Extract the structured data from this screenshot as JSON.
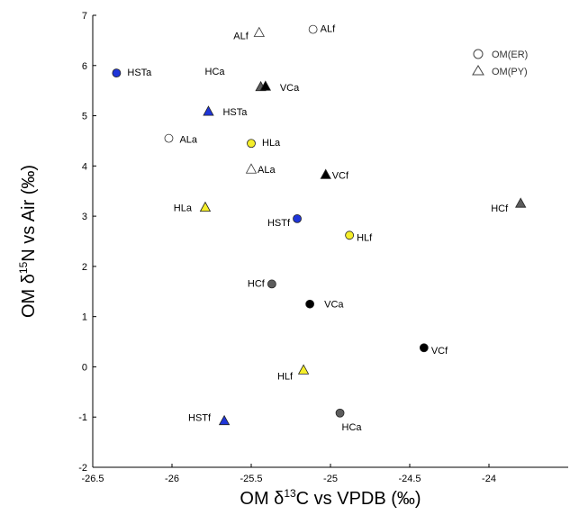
{
  "chart_data": {
    "type": "scatter",
    "xlabel": {
      "prefix": "OM δ",
      "sup": "13",
      "suffix": "C vs VPDB (‰)"
    },
    "ylabel": {
      "prefix": "OM δ",
      "sup": "15",
      "suffix": "N vs Air (‰)"
    },
    "xlim": [
      -26.5,
      -23.5
    ],
    "ylim": [
      -2,
      7
    ],
    "xticks": [
      -26.5,
      -26,
      -25.5,
      -25,
      -24.5,
      -24
    ],
    "yticks": [
      -2,
      -1,
      0,
      1,
      2,
      3,
      4,
      5,
      6,
      7
    ],
    "xtick_labels": [
      "-26.5",
      "-26",
      "-25.5",
      "-25",
      "-24.5",
      "-24"
    ],
    "ytick_labels": [
      "-2",
      "-1",
      "0",
      "1",
      "2",
      "3",
      "4",
      "5",
      "6",
      "7"
    ],
    "legend": {
      "placement": "top-right",
      "entries": [
        {
          "name": "OM(ER)",
          "marker": "circle"
        },
        {
          "name": "OM(PY)",
          "marker": "triangle"
        }
      ]
    },
    "colors": {
      "blue": "#1f35d8",
      "yellow": "#f5ee2a",
      "gray": "#5c5c5c",
      "black": "#000000",
      "white": "#ffffff"
    },
    "series": [
      {
        "name": "OM(ER)",
        "marker": "circle",
        "points": [
          {
            "label": "HSTa",
            "x": -26.35,
            "y": 5.85,
            "color": "blue"
          },
          {
            "label": "ALa",
            "x": -26.02,
            "y": 4.55,
            "color": "white"
          },
          {
            "label": "HLa",
            "x": -25.5,
            "y": 4.45,
            "color": "yellow"
          },
          {
            "label": "ALf",
            "x": -25.11,
            "y": 6.72,
            "color": "white"
          },
          {
            "label": "HSTf",
            "x": -25.21,
            "y": 2.95,
            "color": "blue"
          },
          {
            "label": "HLf",
            "x": -24.88,
            "y": 2.62,
            "color": "yellow"
          },
          {
            "label": "HCf",
            "x": -25.37,
            "y": 1.65,
            "color": "gray"
          },
          {
            "label": "VCa",
            "x": -25.13,
            "y": 1.25,
            "color": "black"
          },
          {
            "label": "VCf",
            "x": -24.41,
            "y": 0.38,
            "color": "black"
          },
          {
            "label": "HCa",
            "x": -24.94,
            "y": -0.92,
            "color": "gray"
          }
        ]
      },
      {
        "name": "OM(PY)",
        "marker": "triangle",
        "points": [
          {
            "label": "ALf",
            "x": -25.45,
            "y": 6.65,
            "color": "white"
          },
          {
            "label": "HCa",
            "x": -25.44,
            "y": 5.57,
            "color": "gray"
          },
          {
            "label": "VCa",
            "x": -25.41,
            "y": 5.58,
            "color": "black"
          },
          {
            "label": "HSTa",
            "x": -25.77,
            "y": 5.08,
            "color": "blue"
          },
          {
            "label": "ALa",
            "x": -25.5,
            "y": 3.93,
            "color": "white"
          },
          {
            "label": "VCf",
            "x": -25.03,
            "y": 3.82,
            "color": "black"
          },
          {
            "label": "HLa",
            "x": -25.79,
            "y": 3.17,
            "color": "yellow"
          },
          {
            "label": "HCf",
            "x": -23.8,
            "y": 3.25,
            "color": "gray"
          },
          {
            "label": "HLf",
            "x": -25.17,
            "y": -0.07,
            "color": "yellow"
          },
          {
            "label": "HSTf",
            "x": -25.67,
            "y": -1.08,
            "color": "blue"
          }
        ]
      }
    ]
  }
}
